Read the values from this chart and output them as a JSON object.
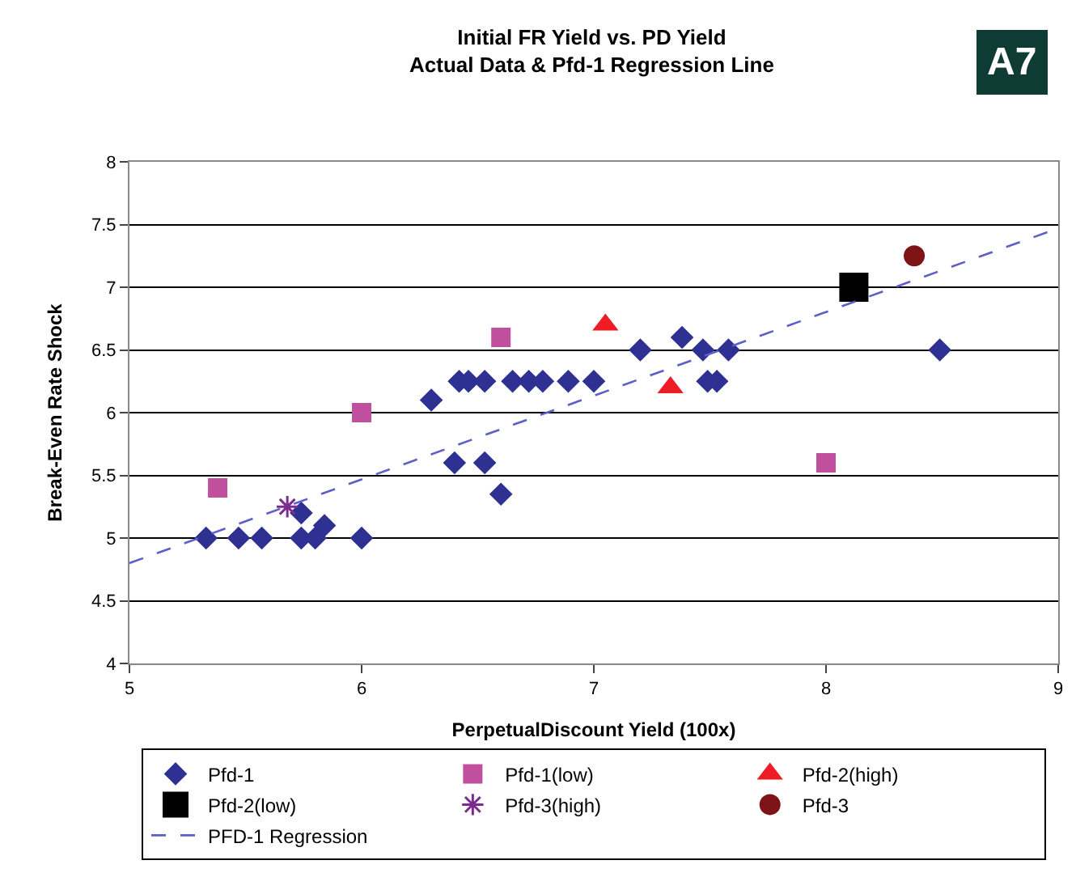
{
  "chart_data": {
    "type": "scatter",
    "title": "Initial FR Yield vs. PD Yield\nActual Data & Pfd-1 Regression Line",
    "xlabel": "PerpetualDiscount Yield (100x)",
    "ylabel": "Break-Even Rate Shock",
    "xlim": [
      5,
      9
    ],
    "xticks": [
      5,
      6,
      7,
      8,
      9
    ],
    "ylim": [
      4,
      8
    ],
    "yticks": [
      4,
      4.5,
      5,
      5.5,
      6,
      6.5,
      7,
      7.5,
      8
    ],
    "grid": "y",
    "legend": "bottom",
    "annotations": [
      "A7"
    ],
    "series": [
      {
        "name": "Pfd-1",
        "color": "#2e3192",
        "marker": "diamond",
        "x": [
          5.33,
          5.47,
          5.57,
          5.74,
          5.74,
          5.8,
          5.84,
          6.0,
          6.3,
          6.4,
          6.42,
          6.46,
          6.53,
          6.65,
          6.72,
          6.78,
          6.89,
          7.0,
          6.53,
          6.6,
          7.2,
          7.38,
          7.47,
          7.58,
          7.49,
          7.53,
          8.49
        ],
        "values": [
          5.0,
          5.0,
          5.0,
          5.2,
          5.0,
          5.0,
          5.1,
          5.0,
          6.1,
          5.6,
          6.25,
          6.25,
          6.25,
          6.25,
          6.25,
          6.25,
          6.25,
          6.25,
          5.6,
          5.35,
          6.5,
          6.6,
          6.5,
          6.5,
          6.25,
          6.25,
          6.5
        ]
      },
      {
        "name": "Pfd-1(low)",
        "color": "#c0509e",
        "marker": "square",
        "x": [
          5.38,
          6.0,
          6.6,
          8.0
        ],
        "values": [
          5.4,
          6.0,
          6.6,
          5.6
        ]
      },
      {
        "name": "Pfd-2(high)",
        "color": "#ee1c25",
        "marker": "triangle",
        "x": [
          7.05,
          7.33
        ],
        "values": [
          6.7,
          6.2
        ]
      },
      {
        "name": "Pfd-2(low)",
        "color": "#000000",
        "marker": "square",
        "x": [
          8.12
        ],
        "values": [
          7.0
        ]
      },
      {
        "name": "Pfd-3(high)",
        "color": "#7b2c8e",
        "marker": "cross",
        "x": [
          5.68
        ],
        "values": [
          5.25
        ]
      },
      {
        "name": "Pfd-3",
        "color": "#7f1416",
        "marker": "circle",
        "x": [
          8.38
        ],
        "values": [
          7.25
        ]
      },
      {
        "name": "PFD-1 Regression",
        "type": "line",
        "color": "#5b5fc7",
        "line_style": "dashed",
        "marker": "none",
        "x": [
          5,
          9
        ],
        "values": [
          4.8,
          7.47
        ]
      }
    ]
  }
}
